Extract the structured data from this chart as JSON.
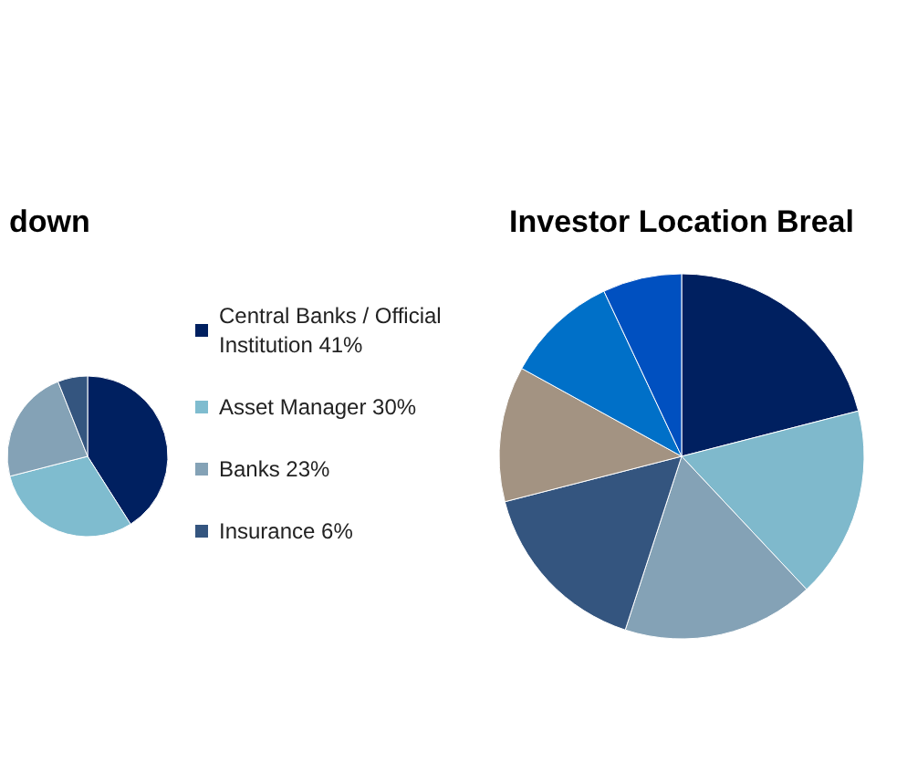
{
  "chart_data": [
    {
      "type": "pie",
      "title": "down",
      "categories": [
        "Central Banks / Official Institution 41%",
        "Asset Manager 30%",
        "Banks 23%",
        "Insurance 6%"
      ],
      "values": [
        41,
        30,
        23,
        6
      ],
      "colors": [
        "#002060",
        "#7fbccf",
        "#84a2b6",
        "#34557f"
      ],
      "legend": "right"
    },
    {
      "type": "pie",
      "title": "Investor Location Breal",
      "categories": [
        null,
        null,
        null,
        null,
        null,
        null,
        null
      ],
      "values": [
        21,
        17,
        17,
        16,
        12,
        10,
        7
      ],
      "colors": [
        "#002060",
        "#7fb9cc",
        "#84a2b6",
        "#34557f",
        "#a39382",
        "#0070c8",
        "#0050c0"
      ],
      "legend": false
    }
  ]
}
